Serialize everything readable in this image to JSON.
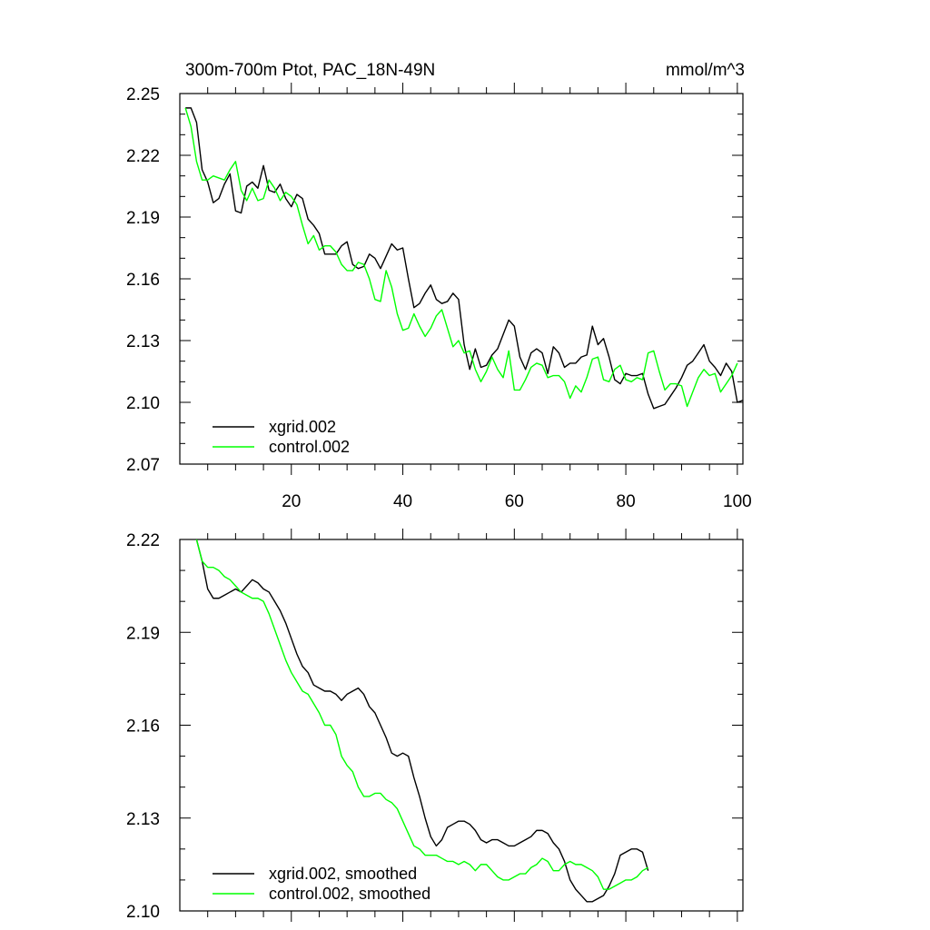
{
  "chart_data": [
    {
      "type": "line",
      "title": "300m-700m Ptot, PAC_18N-49N",
      "units": "mmol/m^3",
      "xlim": [
        0,
        101
      ],
      "ylim": [
        2.07,
        2.25
      ],
      "xticks": [
        20,
        40,
        60,
        80,
        100
      ],
      "xtick_labels": [
        "20",
        "40",
        "60",
        "80",
        "100"
      ],
      "yticks": [
        2.07,
        2.1,
        2.13,
        2.16,
        2.19,
        2.22,
        2.25
      ],
      "ytick_labels": [
        "2.07",
        "2.10",
        "2.13",
        "2.16",
        "2.19",
        "2.22",
        "2.25"
      ],
      "legend_position": "bottom-left",
      "series": [
        {
          "name": "xgrid.002",
          "color": "#000000",
          "x_start": 1,
          "values": [
            2.243,
            2.243,
            2.236,
            2.213,
            2.207,
            2.197,
            2.199,
            2.206,
            2.211,
            2.193,
            2.192,
            2.205,
            2.207,
            2.204,
            2.215,
            2.203,
            2.202,
            2.206,
            2.199,
            2.195,
            2.201,
            2.199,
            2.189,
            2.186,
            2.182,
            2.172,
            2.172,
            2.172,
            2.176,
            2.178,
            2.167,
            2.165,
            2.166,
            2.172,
            2.17,
            2.165,
            2.171,
            2.177,
            2.174,
            2.175,
            2.16,
            2.146,
            2.148,
            2.153,
            2.157,
            2.15,
            2.148,
            2.149,
            2.153,
            2.15,
            2.128,
            2.116,
            2.126,
            2.117,
            2.118,
            2.123,
            2.126,
            2.133,
            2.14,
            2.137,
            2.122,
            2.116,
            2.124,
            2.126,
            2.124,
            2.114,
            2.127,
            2.124,
            2.117,
            2.119,
            2.119,
            2.122,
            2.123,
            2.137,
            2.128,
            2.131,
            2.122,
            2.111,
            2.109,
            2.114,
            2.113,
            2.113,
            2.114,
            2.104,
            2.097,
            2.098,
            2.099,
            2.103,
            2.107,
            2.112,
            2.118,
            2.12,
            2.124,
            2.128,
            2.12,
            2.117,
            2.113,
            2.119,
            2.115,
            2.1,
            2.101
          ]
        },
        {
          "name": "control.002",
          "color": "#00ff00",
          "x_start": 1,
          "values": [
            2.243,
            2.234,
            2.217,
            2.208,
            2.208,
            2.21,
            2.209,
            2.208,
            2.213,
            2.217,
            2.203,
            2.198,
            2.204,
            2.198,
            2.199,
            2.208,
            2.204,
            2.198,
            2.202,
            2.2,
            2.196,
            2.186,
            2.177,
            2.181,
            2.174,
            2.176,
            2.176,
            2.173,
            2.167,
            2.164,
            2.164,
            2.168,
            2.167,
            2.16,
            2.15,
            2.149,
            2.164,
            2.156,
            2.143,
            2.135,
            2.136,
            2.143,
            2.137,
            2.132,
            2.136,
            2.142,
            2.145,
            2.136,
            2.127,
            2.13,
            2.124,
            2.125,
            2.116,
            2.11,
            2.115,
            2.122,
            2.116,
            2.112,
            2.125,
            2.106,
            2.106,
            2.111,
            2.117,
            2.119,
            2.118,
            2.112,
            2.113,
            2.113,
            2.11,
            2.102,
            2.108,
            2.105,
            2.112,
            2.121,
            2.122,
            2.111,
            2.11,
            2.116,
            2.118,
            2.111,
            2.11,
            2.112,
            2.111,
            2.124,
            2.125,
            2.115,
            2.106,
            2.109,
            2.109,
            2.108,
            2.098,
            2.105,
            2.112,
            2.116,
            2.113,
            2.114,
            2.105,
            2.109,
            2.113,
            2.119
          ]
        }
      ]
    },
    {
      "type": "line",
      "title": "",
      "xlim": [
        0,
        101
      ],
      "ylim": [
        2.1,
        2.22
      ],
      "xticks": [
        20,
        40,
        60,
        80,
        100
      ],
      "xtick_labels": [],
      "yticks": [
        2.1,
        2.13,
        2.16,
        2.19,
        2.22
      ],
      "ytick_labels": [
        "2.10",
        "2.13",
        "2.16",
        "2.19",
        "2.22"
      ],
      "legend_position": "bottom-left",
      "series": [
        {
          "name": "xgrid.002, smoothed",
          "color": "#000000",
          "x_start": 3,
          "values": [
            2.22,
            2.213,
            2.204,
            2.201,
            2.201,
            2.202,
            2.203,
            2.204,
            2.203,
            2.205,
            2.207,
            2.206,
            2.204,
            2.203,
            2.2,
            2.197,
            2.193,
            2.188,
            2.183,
            2.179,
            2.177,
            2.173,
            2.172,
            2.171,
            2.171,
            2.17,
            2.168,
            2.17,
            2.171,
            2.172,
            2.17,
            2.166,
            2.164,
            2.16,
            2.156,
            2.151,
            2.15,
            2.151,
            2.15,
            2.143,
            2.137,
            2.13,
            2.124,
            2.121,
            2.123,
            2.127,
            2.128,
            2.129,
            2.129,
            2.128,
            2.126,
            2.123,
            2.122,
            2.123,
            2.123,
            2.122,
            2.121,
            2.121,
            2.122,
            2.123,
            2.124,
            2.126,
            2.126,
            2.125,
            2.122,
            2.12,
            2.116,
            2.11,
            2.107,
            2.105,
            2.103,
            2.103,
            2.104,
            2.105,
            2.108,
            2.112,
            2.118,
            2.119,
            2.12,
            2.12,
            2.119,
            2.113
          ]
        },
        {
          "name": "control.002, smoothed",
          "color": "#00ff00",
          "x_start": 3,
          "values": [
            2.22,
            2.213,
            2.211,
            2.211,
            2.21,
            2.208,
            2.207,
            2.205,
            2.203,
            2.202,
            2.201,
            2.201,
            2.2,
            2.196,
            2.191,
            2.186,
            2.181,
            2.177,
            2.174,
            2.171,
            2.17,
            2.167,
            2.164,
            2.16,
            2.16,
            2.157,
            2.15,
            2.147,
            2.145,
            2.14,
            2.137,
            2.137,
            2.138,
            2.138,
            2.136,
            2.135,
            2.133,
            2.129,
            2.125,
            2.121,
            2.12,
            2.118,
            2.118,
            2.118,
            2.117,
            2.116,
            2.116,
            2.115,
            2.116,
            2.115,
            2.113,
            2.115,
            2.115,
            2.113,
            2.111,
            2.11,
            2.11,
            2.111,
            2.112,
            2.112,
            2.114,
            2.115,
            2.117,
            2.116,
            2.113,
            2.113,
            2.115,
            2.116,
            2.115,
            2.115,
            2.114,
            2.113,
            2.111,
            2.107,
            2.107,
            2.108,
            2.109,
            2.11,
            2.11,
            2.111,
            2.113,
            2.114
          ]
        }
      ]
    }
  ]
}
